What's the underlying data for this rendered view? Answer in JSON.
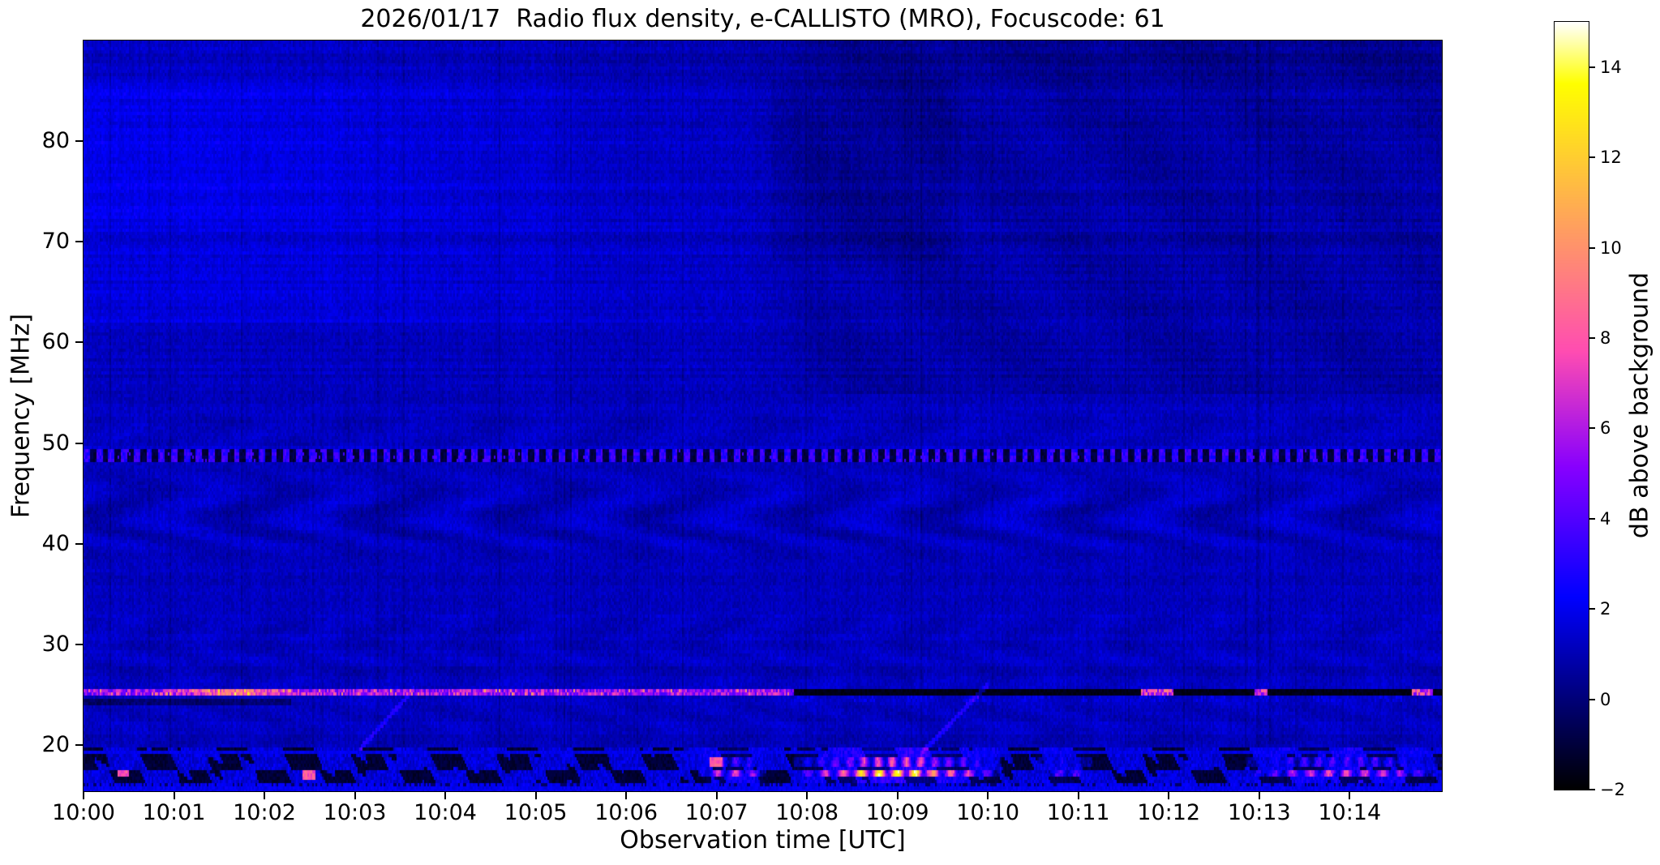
{
  "title": "2026/01/17  Radio flux density, e-CALLISTO (MRO), Focuscode: 61",
  "x_axis": {
    "label": "Observation time [UTC]",
    "ticks": [
      "10:00",
      "10:01",
      "10:02",
      "10:03",
      "10:04",
      "10:05",
      "10:06",
      "10:07",
      "10:08",
      "10:09",
      "10:10",
      "10:11",
      "10:12",
      "10:13",
      "10:14"
    ]
  },
  "y_axis": {
    "label": "Frequency [MHz]",
    "ticks": [
      80,
      70,
      60,
      50,
      40,
      30,
      20
    ]
  },
  "colorbar": {
    "label": "dB above background",
    "ticks": [
      14,
      12,
      10,
      8,
      6,
      4,
      2,
      0,
      -2
    ],
    "vmin": -2,
    "vmax": 15,
    "colormap": "gnuplot2"
  },
  "chart_data": {
    "type": "heatmap",
    "title": "2026/01/17  Radio flux density, e-CALLISTO (MRO), Focuscode: 61",
    "xlabel": "Observation time [UTC]",
    "ylabel": "Frequency [MHz]",
    "value_label": "dB above background",
    "value_range": [
      -2,
      15
    ],
    "x_start": "10:00",
    "x_end": "10:15",
    "t_max_min": 15.02,
    "f_min": 15.4,
    "f_max": 90,
    "features": [
      "Quiet noisy dark-blue background around 0-2 dB over the whole band with strong vertical flicker and horizontal channel striping",
      "Brighter blue enhancement 62-86 MHz from 10:00 to about 10:06, strongest near 10:00-10:04",
      "Darker (near 0 dB) patch above 55 MHz after about 10:07:30, deepest 68-86 MHz near 10:08-10:09:30",
      "Dashed on/off RFI channel at 48.2-49.3 MHz across the entire record (bright blue dots alternating with black gaps every ~8 s)",
      "Wavy interference fringes (moire-like arcs) between about 38 and 48 MHz",
      "Strong narrowband carrier at ~25.2 MHz: bright pink/white (4-12 dB) from 10:00 until ~10:07:50, then a black absorbed line to the end with brief bright dashes near 10:11:50, 10:13:00 and 10:14:45",
      "Blocky broadband activity band 16.5-19.5 MHz: alternating black and blue blocks; brightening 10:06:50-10:07:30; strongest orange-pink emission 10:08-10:10 peaking ~13 dB near 10:08:40-10:09:20; moderate again 10:12:50-10:15",
      "Faint drifting streaks near 10:03:10 (19.5 to 25.5 MHz) and 10:09:20-10:10:00 (19 to 26 MHz)"
    ],
    "render": {
      "seed": 42,
      "base_db": 1.15,
      "noise_db": 0.8,
      "regions": {
        "top_bright": {
          "f": [
            62,
            90
          ],
          "t_center": 1.6,
          "t_sigma": 4.8,
          "boost": 0.5
        },
        "top_bright_extra": {
          "f": [
            72,
            86
          ],
          "t_until": 6,
          "boost": 0.35
        },
        "top_right_dark": {
          "f": [
            55,
            90
          ],
          "t_from": 7.4,
          "boost": -0.55
        },
        "top_right_blob": {
          "f": [
            68,
            86
          ],
          "t": [
            7.6,
            9.6
          ],
          "boost": -0.3
        },
        "very_top_dark": {
          "f": [
            85.8,
            90
          ],
          "boost": -0.4
        }
      },
      "wavy": {
        "f": [
          37.5,
          53
        ],
        "amp": 0.5,
        "period_min": 1.55
      },
      "wavy2": {
        "f": [
          19.5,
          33
        ],
        "amp": 0.2,
        "period_min": 1.2
      },
      "band49": {
        "f": [
          48.2,
          49.35
        ],
        "dash_period_s": 8.3
      },
      "line25": {
        "f": [
          24.85,
          25.65
        ],
        "bright_until_min": 7.85,
        "peak_t": 1.7,
        "dash_windows": [
          [
            11.7,
            12.05
          ],
          [
            12.95,
            13.1
          ],
          [
            14.68,
            14.92
          ]
        ],
        "shadow_f": [
          23.9,
          24.7
        ],
        "shadow_until_min": 2.3
      },
      "low_band": {
        "f": [
          16.3,
          19.6
        ],
        "events": [
          {
            "t": [
              6.8,
              7.55
            ],
            "peak": 7.5
          },
          {
            "t": [
              7.85,
              10.15
            ],
            "peak": 11,
            "hot_t": [
              8.5,
              9.35
            ]
          },
          {
            "t": [
              10.55,
              11.15
            ],
            "peak": 4.5
          },
          {
            "t": [
              12.85,
              15.02
            ],
            "peak": 7.5
          }
        ],
        "bright_dots": [
          {
            "t": 0.44,
            "f": 17.2
          },
          {
            "t": 2.5,
            "f": 17.0
          },
          {
            "t": 7.0,
            "f": 18.3
          }
        ]
      },
      "diag_streaks": [
        {
          "t": [
            3.05,
            3.65
          ],
          "f": [
            19.5,
            25.5
          ]
        },
        {
          "t": [
            9.25,
            10.0
          ],
          "f": [
            19.0,
            26.0
          ]
        }
      ]
    }
  }
}
